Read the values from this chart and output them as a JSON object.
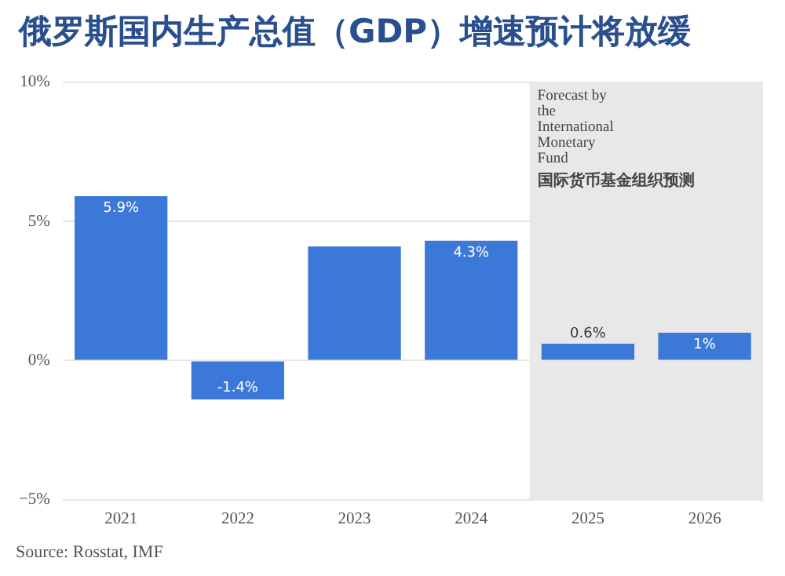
{
  "chart_data": {
    "type": "bar",
    "title": "俄罗斯国内生产总值（GDP）增速预计将放缓",
    "categories": [
      "2021",
      "2022",
      "2023",
      "2024",
      "2025",
      "2026"
    ],
    "values": [
      5.9,
      -1.4,
      4.1,
      4.3,
      0.6,
      1
    ],
    "value_labels": [
      "5.9%",
      "-1.4%",
      null,
      "4.3%",
      "0.6%",
      "1%"
    ],
    "color": "#3c78d8",
    "ylim": [
      -5,
      10
    ],
    "yticks": [
      {
        "value": -5,
        "label": "−5%"
      },
      {
        "value": 0,
        "label": "0%"
      },
      {
        "value": 5,
        "label": "5%"
      },
      {
        "value": 10,
        "label": "10%"
      }
    ],
    "grid": "y",
    "bands": [
      {
        "axis": "x",
        "from": "2025",
        "to": "2026",
        "label": "Forecast by the International Monetary Fund",
        "color": "#e8e8e8"
      }
    ],
    "annotations": [
      "国际货币基金组织预测",
      "Source: Rosstat, IMF"
    ]
  }
}
